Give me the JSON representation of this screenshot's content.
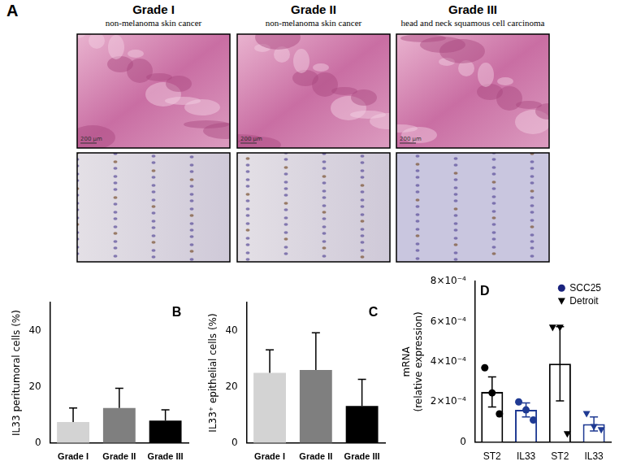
{
  "panel_A": {
    "label": "A",
    "columns": [
      {
        "title": "Grade I",
        "subtitle": "non-melanoma skin cancer",
        "scale_bar": "200 µm"
      },
      {
        "title": "Grade II",
        "subtitle": "non-melanoma skin cancer",
        "scale_bar": "200 µm"
      },
      {
        "title": "Grade III",
        "subtitle": "head and neck squamous cell carcinoma",
        "scale_bar": "200 µm"
      }
    ]
  },
  "chart_data": [
    {
      "type": "bar",
      "title": "B",
      "categories": [
        "Grade I",
        "Grade II",
        "Grade III"
      ],
      "values": [
        7.5,
        12.5,
        8
      ],
      "errors": [
        5,
        7,
        3.8
      ],
      "colors": [
        "#d3d3d3",
        "#7f7f7f",
        "#000000"
      ],
      "ylabel": "IL33 peritumoral cells (%)",
      "ylim": [
        0,
        50
      ],
      "yticks": [
        0,
        20,
        40
      ],
      "grid": false
    },
    {
      "type": "bar",
      "title": "C",
      "categories": [
        "Grade I",
        "Grade II",
        "Grade III"
      ],
      "values": [
        25,
        26,
        13.2
      ],
      "errors": [
        8.2,
        13.3,
        9.5
      ],
      "colors": [
        "#d3d3d3",
        "#7f7f7f",
        "#000000"
      ],
      "ylabel": "IL33⁺ epithelial cells (%)",
      "ylim": [
        0,
        50
      ],
      "yticks": [
        0,
        20,
        40
      ],
      "grid": false
    },
    {
      "type": "bar",
      "title": "D",
      "categories": [
        "ST2",
        "IL33",
        "ST2",
        "IL33"
      ],
      "values": [
        0.00025,
        0.00016,
        0.00039,
        9e-05
      ],
      "errors": [
        7.5e-05,
        3.5e-05,
        0.000185,
        3.5e-05
      ],
      "colors": [
        "#000000",
        "#1f3a93",
        "#000000",
        "#1f3a93"
      ],
      "ylabel": [
        "mRNA",
        "(relative expression)"
      ],
      "ylim": [
        0,
        0.0008
      ],
      "yticks": [
        0,
        {
          "value": 0.0002,
          "label": "2×10⁻⁴"
        },
        {
          "value": 0.0004,
          "label": "4×10⁻⁴"
        },
        {
          "value": 0.0006,
          "label": "6×10⁻⁴"
        },
        {
          "value": 0.0008,
          "label": "8×10⁻⁴"
        }
      ],
      "grid": false,
      "legend": "upper right",
      "series": [
        {
          "name": "SCC25",
          "color": "#1a237e",
          "marker": "circle",
          "values": [
            [
              0.00037,
              0.000245,
              0.00014
            ],
            [
              0.0002,
              0.00016,
              0.00011
            ],
            null,
            null
          ]
        },
        {
          "name": "Detroit",
          "color": "#000000",
          "marker": "triangle",
          "values": [
            null,
            null,
            [
              0.00057,
              0.00057,
              4e-05
            ],
            [
              0.00014,
              7.5e-05,
              6e-05
            ]
          ]
        }
      ]
    }
  ]
}
